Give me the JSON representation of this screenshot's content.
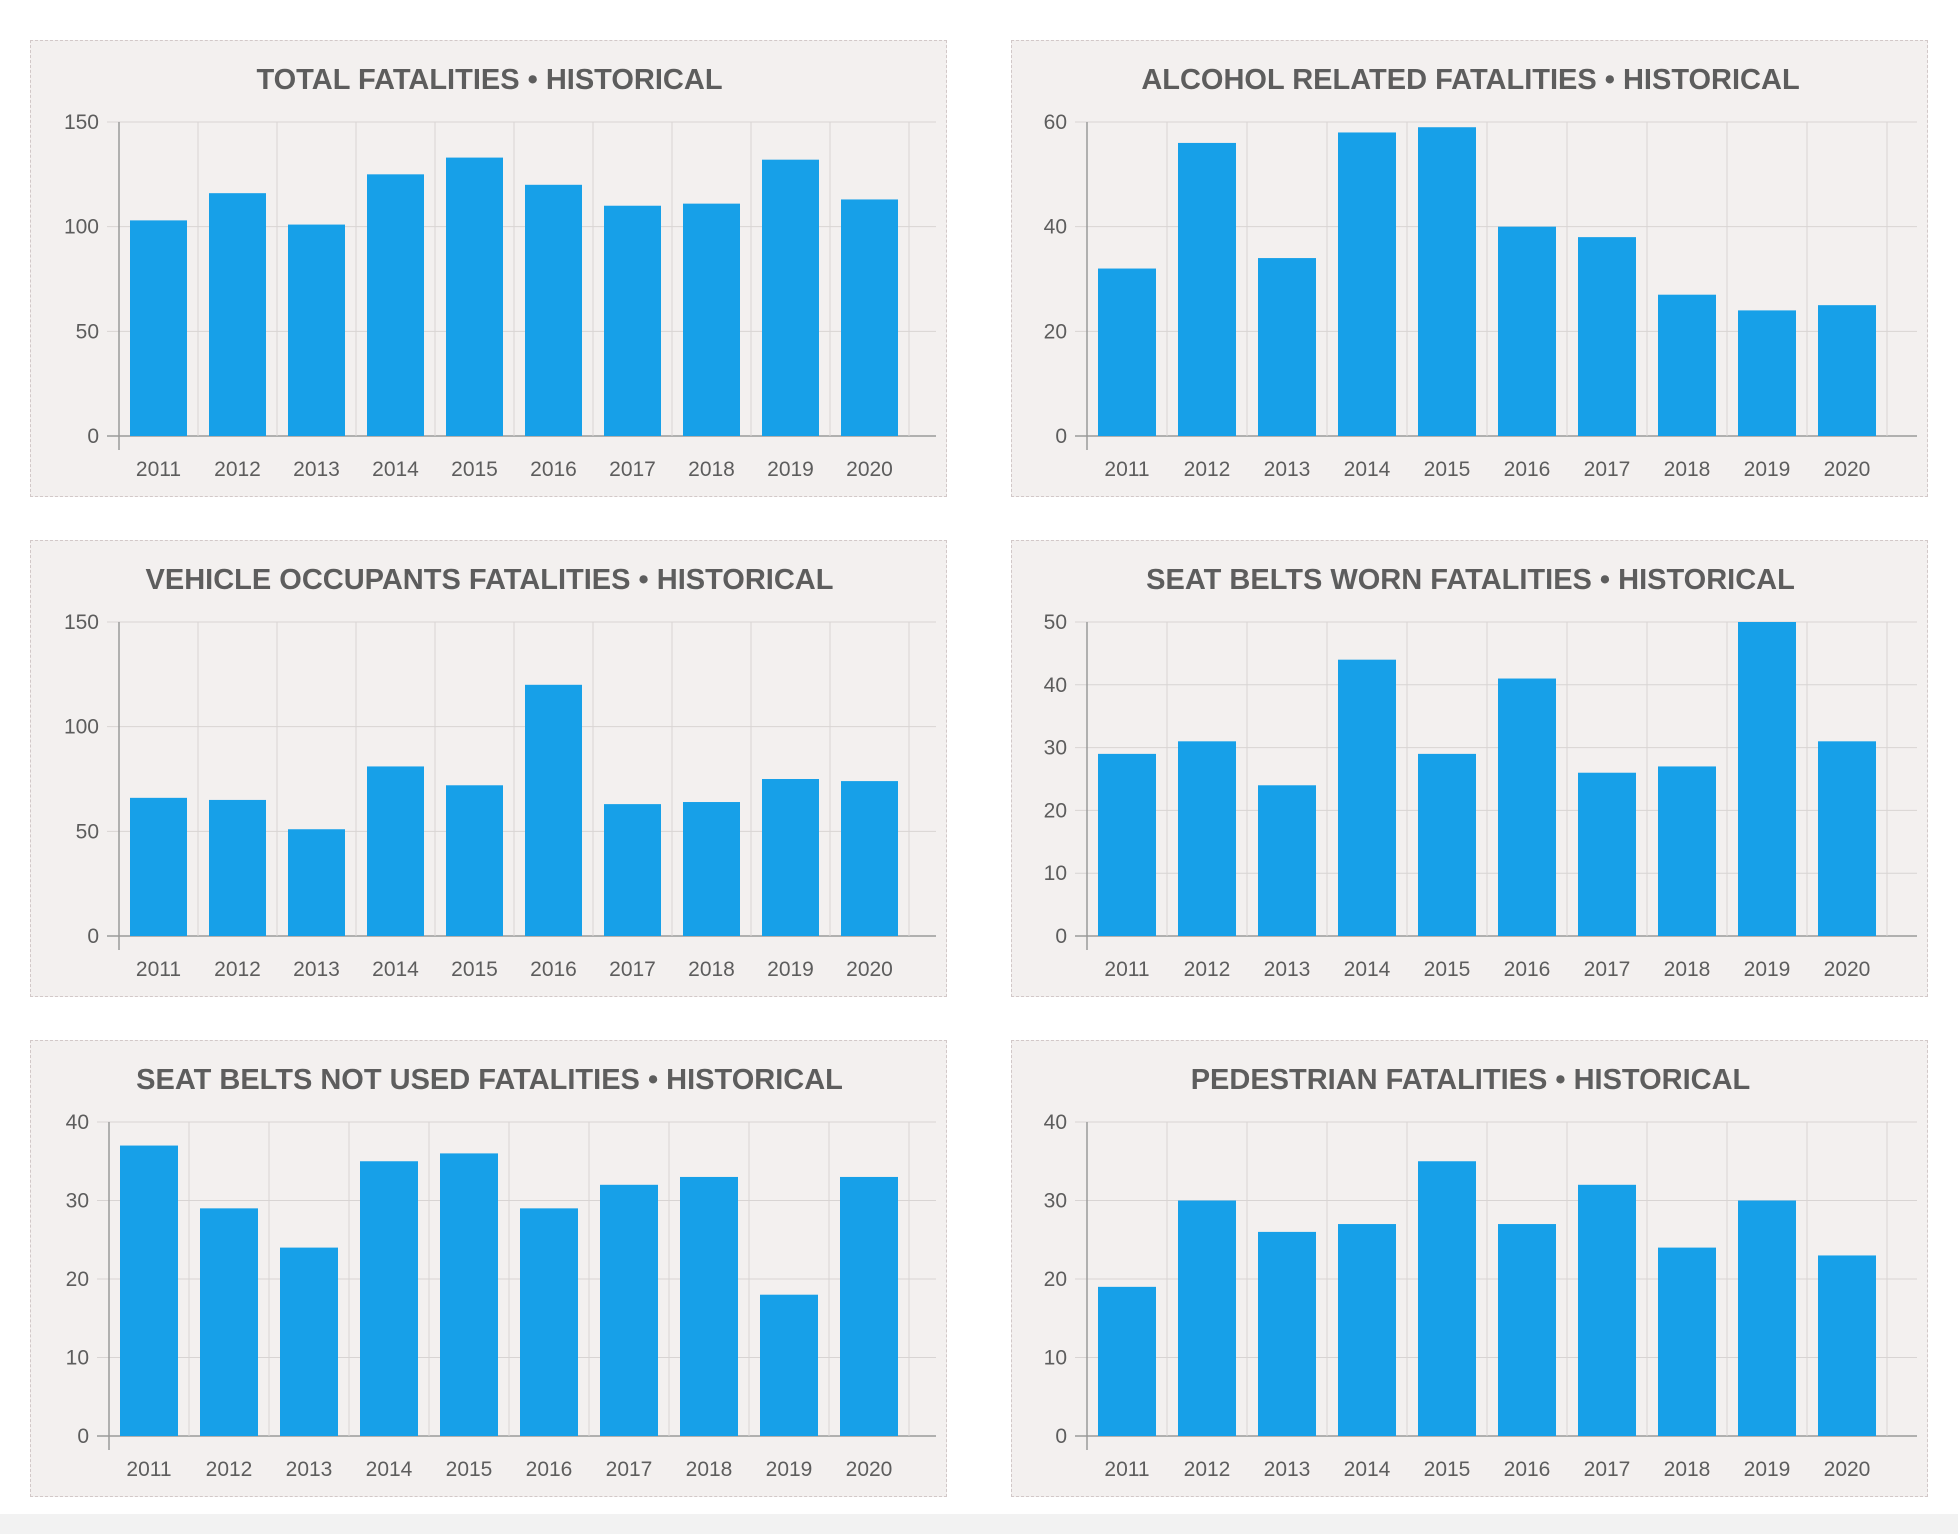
{
  "chart_data": [
    {
      "type": "bar",
      "title": "TOTAL FATALITIES • HISTORICAL",
      "categories": [
        "2011",
        "2012",
        "2013",
        "2014",
        "2015",
        "2016",
        "2017",
        "2018",
        "2019",
        "2020"
      ],
      "values": [
        103,
        116,
        101,
        125,
        133,
        120,
        110,
        111,
        132,
        113
      ],
      "ylim": [
        0,
        150
      ],
      "yticks": [
        0,
        50,
        100,
        150
      ],
      "grid": true,
      "color": "#17a0e8"
    },
    {
      "type": "bar",
      "title": "ALCOHOL RELATED FATALITIES • HISTORICAL",
      "categories": [
        "2011",
        "2012",
        "2013",
        "2014",
        "2015",
        "2016",
        "2017",
        "2018",
        "2019",
        "2020"
      ],
      "values": [
        32,
        56,
        34,
        58,
        59,
        40,
        38,
        27,
        24,
        25
      ],
      "ylim": [
        0,
        60
      ],
      "yticks": [
        0,
        20,
        40,
        60
      ],
      "grid": true,
      "color": "#17a0e8"
    },
    {
      "type": "bar",
      "title": "VEHICLE OCCUPANTS FATALITIES • HISTORICAL",
      "categories": [
        "2011",
        "2012",
        "2013",
        "2014",
        "2015",
        "2016",
        "2017",
        "2018",
        "2019",
        "2020"
      ],
      "values": [
        66,
        65,
        51,
        81,
        72,
        120,
        63,
        64,
        75,
        74
      ],
      "ylim": [
        0,
        150
      ],
      "yticks": [
        0,
        50,
        100,
        150
      ],
      "grid": true,
      "color": "#17a0e8"
    },
    {
      "type": "bar",
      "title": "SEAT BELTS WORN FATALITIES • HISTORICAL",
      "categories": [
        "2011",
        "2012",
        "2013",
        "2014",
        "2015",
        "2016",
        "2017",
        "2018",
        "2019",
        "2020"
      ],
      "values": [
        29,
        31,
        24,
        44,
        29,
        41,
        26,
        27,
        50,
        31
      ],
      "ylim": [
        0,
        50
      ],
      "yticks": [
        0,
        10,
        20,
        30,
        40,
        50
      ],
      "grid": true,
      "color": "#17a0e8"
    },
    {
      "type": "bar",
      "title": "SEAT BELTS NOT USED FATALITIES • HISTORICAL",
      "categories": [
        "2011",
        "2012",
        "2013",
        "2014",
        "2015",
        "2016",
        "2017",
        "2018",
        "2019",
        "2020"
      ],
      "values": [
        37,
        29,
        24,
        35,
        36,
        29,
        32,
        33,
        18,
        33
      ],
      "ylim": [
        0,
        40
      ],
      "yticks": [
        0,
        10,
        20,
        30,
        40
      ],
      "grid": true,
      "color": "#17a0e8"
    },
    {
      "type": "bar",
      "title": "PEDESTRIAN FATALITIES • HISTORICAL",
      "categories": [
        "2011",
        "2012",
        "2013",
        "2014",
        "2015",
        "2016",
        "2017",
        "2018",
        "2019",
        "2020"
      ],
      "values": [
        19,
        30,
        26,
        27,
        35,
        27,
        32,
        24,
        30,
        23
      ],
      "ylim": [
        0,
        40
      ],
      "yticks": [
        0,
        10,
        20,
        30,
        40
      ],
      "grid": true,
      "color": "#17a0e8"
    }
  ]
}
